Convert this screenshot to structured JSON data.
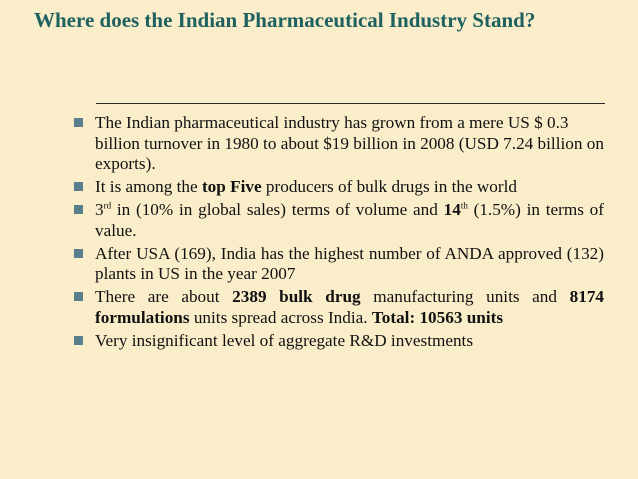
{
  "slide": {
    "title": "Where does the Indian Pharmaceutical Industry Stand?",
    "bullets": {
      "b1": "The Indian pharmaceutical industry has grown from a mere US $ 0.3 billion turnover in 1980 to about $19 billion in 2008 (USD 7.24 billion on exports).",
      "b2": {
        "pre": "It is among the ",
        "bold": "top Five",
        "post": " producers of bulk drugs in the world"
      },
      "b3": {
        "num1": "3",
        "sup1": "rd",
        "mid": " in (10% in global sales) terms of volume and ",
        "num2": "14",
        "sup2": "th",
        "post": " (1.5%) in terms of value."
      },
      "b4": "After USA (169), India has the highest number of ANDA approved (132) plants in US in the year 2007",
      "b5": {
        "pre": "There are about ",
        "bold1": "2389 bulk drug",
        "mid1": " manufacturing units and ",
        "bold2": "8174 formulations",
        "mid2": " units spread across India. ",
        "bold3": "Total: 10563 units"
      },
      "b6": "Very insignificant level of aggregate R&D investments"
    }
  },
  "colors": {
    "background": "#f9edca",
    "title": "#1f6060",
    "bullet": "#5a7f8c"
  },
  "icons": {
    "bullet": "square-bullet-icon"
  }
}
